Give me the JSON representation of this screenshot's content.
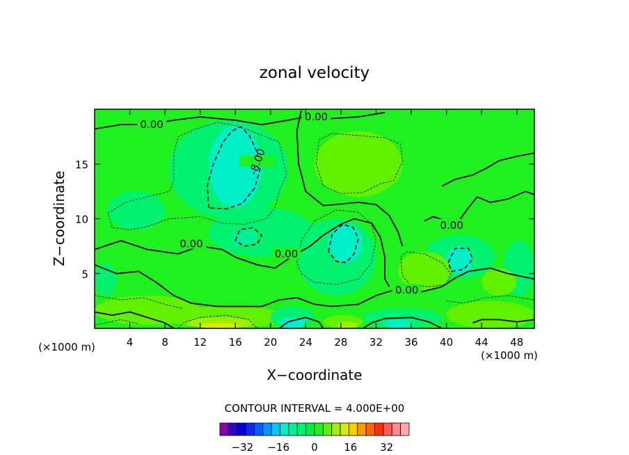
{
  "chart_data": {
    "type": "heatmap",
    "title": "zonal velocity",
    "xlabel": "X−coordinate",
    "ylabel": "Z−coordinate",
    "x_unit": "(×1000 m)",
    "y_unit": "(×1000 m)",
    "xlim": [
      0,
      50
    ],
    "ylim": [
      0,
      20
    ],
    "x_ticks": [
      "4",
      "8",
      "12",
      "16",
      "20",
      "24",
      "28",
      "32",
      "36",
      "40",
      "44",
      "48"
    ],
    "y_ticks": [
      "5",
      "10",
      "15"
    ],
    "contour_interval_label": "CONTOUR INTERVAL = 4.000E+00",
    "contour_interval": 4,
    "contour_labels": [
      {
        "text": "0.00",
        "x": 6.5,
        "z": 18.6
      },
      {
        "text": "0.00",
        "x": 25.2,
        "z": 19.3
      },
      {
        "text": "-8.00",
        "x": 18.5,
        "z": 15.2
      },
      {
        "text": "0.00",
        "x": 11.0,
        "z": 7.7
      },
      {
        "text": "0.00",
        "x": 21.8,
        "z": 6.8
      },
      {
        "text": "0.00",
        "x": 40.6,
        "z": 9.4
      },
      {
        "text": "0.00",
        "x": 35.5,
        "z": 3.5
      }
    ],
    "colorbar": {
      "tick_labels": [
        "−32",
        "−16",
        "0",
        "16",
        "32"
      ],
      "tick_values": [
        -32,
        -16,
        0,
        16,
        32
      ],
      "min": -42,
      "max": 42,
      "colors": [
        "#8b00a8",
        "#3a00c8",
        "#0000d8",
        "#0a2cf0",
        "#0060ff",
        "#0098ff",
        "#00c8ff",
        "#00eec8",
        "#00f09a",
        "#00f070",
        "#00ec46",
        "#20f020",
        "#60f000",
        "#a0ee00",
        "#d8ea00",
        "#f8d000",
        "#ff9a00",
        "#ff6400",
        "#ff3200",
        "#ff5a5a",
        "#ff8888",
        "#ffa8a8"
      ]
    },
    "regions": [
      {
        "level": 0,
        "x": 0,
        "z": 0,
        "w": 50,
        "h": 20,
        "color": "#20f020"
      },
      {
        "level": -4,
        "x": 1.5,
        "z": 9.0,
        "w": 6.5,
        "h": 3.5,
        "color": "#00f070"
      },
      {
        "level": -4,
        "x": 8.5,
        "z": 10.0,
        "w": 13.5,
        "h": 9.0,
        "color": "#00f070"
      },
      {
        "level": -4,
        "x": 13.0,
        "z": 6.5,
        "w": 12.0,
        "h": 4.5,
        "color": "#00f070"
      },
      {
        "level": -8,
        "x": 13.0,
        "z": 11.0,
        "w": 6.0,
        "h": 7.5,
        "color": "#00eec8"
      },
      {
        "level": -4,
        "x": 23.0,
        "z": 3.0,
        "w": 9.0,
        "h": 7.0,
        "color": "#00f070"
      },
      {
        "level": -8,
        "x": 26.5,
        "z": 6.0,
        "w": 4.0,
        "h": 3.5,
        "color": "#00eec8"
      },
      {
        "level": -4,
        "x": 15.5,
        "z": 7.5,
        "w": 3.0,
        "h": 1.5,
        "color": "#00f09a"
      },
      {
        "level": 4,
        "x": 25.0,
        "z": 12.0,
        "w": 10.0,
        "h": 6.0,
        "color": "#60f000"
      },
      {
        "level": -4,
        "x": 37.5,
        "z": 4.5,
        "w": 8.0,
        "h": 4.0,
        "color": "#00f070"
      },
      {
        "level": -8,
        "x": 40.0,
        "z": 5.0,
        "w": 3.0,
        "h": 2.5,
        "color": "#00eec8"
      },
      {
        "level": 4,
        "x": 34.5,
        "z": 3.5,
        "w": 6.0,
        "h": 3.5,
        "color": "#60f000"
      },
      {
        "level": 4,
        "x": 0.0,
        "z": 0.3,
        "w": 12.0,
        "h": 2.7,
        "color": "#60f000"
      },
      {
        "level": 4,
        "x": 8.0,
        "z": 0.0,
        "w": 14.0,
        "h": 2.0,
        "color": "#60f000"
      },
      {
        "level": 8,
        "x": 10.5,
        "z": 0.0,
        "w": 7.5,
        "h": 1.0,
        "color": "#a0ee00"
      },
      {
        "level": 12,
        "x": 12.0,
        "z": 0.0,
        "w": 4.5,
        "h": 0.5,
        "color": "#d8ea00"
      },
      {
        "level": -4,
        "x": 20.0,
        "z": 0.0,
        "w": 5.0,
        "h": 2.0,
        "color": "#00f070"
      },
      {
        "level": -8,
        "x": 21.0,
        "z": 0.0,
        "w": 3.0,
        "h": 1.0,
        "color": "#00eec8"
      },
      {
        "level": 4,
        "x": 26.0,
        "z": 0.0,
        "w": 4.5,
        "h": 1.2,
        "color": "#60f000"
      },
      {
        "level": 8,
        "x": 27.5,
        "z": 0.0,
        "w": 2.5,
        "h": 0.6,
        "color": "#a0ee00"
      },
      {
        "level": -4,
        "x": 30.5,
        "z": 0.0,
        "w": 9.0,
        "h": 1.8,
        "color": "#00f070"
      },
      {
        "level": -8,
        "x": 33.0,
        "z": 0.0,
        "w": 3.0,
        "h": 0.8,
        "color": "#00eec8"
      },
      {
        "level": 4,
        "x": 40.0,
        "z": 0.0,
        "w": 10.0,
        "h": 2.5,
        "color": "#60f000"
      },
      {
        "level": -4,
        "x": 0.0,
        "z": 3.0,
        "w": 2.5,
        "h": 3.0,
        "color": "#00f070"
      },
      {
        "level": -4,
        "x": 46.5,
        "z": 3.0,
        "w": 3.5,
        "h": 5.0,
        "color": "#00f070"
      },
      {
        "level": 4,
        "x": 44.0,
        "z": 3.0,
        "w": 4.0,
        "h": 2.5,
        "color": "#60f000"
      }
    ],
    "zero_contours": [
      [
        [
          0,
          18.2
        ],
        [
          3,
          18.6
        ],
        [
          6,
          18.6
        ],
        [
          9,
          19.0
        ],
        [
          12,
          19.3
        ],
        [
          16,
          19.0
        ],
        [
          19,
          18.6
        ],
        [
          22,
          19.0
        ],
        [
          24,
          19.3
        ],
        [
          26,
          19.1
        ],
        [
          30,
          19.3
        ],
        [
          33,
          19.7
        ]
      ],
      [
        [
          23.5,
          19.9
        ],
        [
          23.0,
          18.0
        ],
        [
          23.2,
          15.0
        ],
        [
          24.0,
          12.5
        ],
        [
          26.0,
          11.2
        ],
        [
          30.0,
          11.5
        ],
        [
          32.0,
          11.3
        ],
        [
          33.5,
          10.3
        ],
        [
          34.5,
          8.8
        ],
        [
          35.0,
          7.5
        ]
      ],
      [
        [
          0,
          7.2
        ],
        [
          3.0,
          8.0
        ],
        [
          6.0,
          7.2
        ],
        [
          9.5,
          6.8
        ],
        [
          12.0,
          7.5
        ],
        [
          14.5,
          7.2
        ],
        [
          16.0,
          6.5
        ],
        [
          18.5,
          5.8
        ],
        [
          20.5,
          5.5
        ],
        [
          22.5,
          6.6
        ],
        [
          24.5,
          7.5
        ],
        [
          26.0,
          8.5
        ]
      ],
      [
        [
          0,
          5.8
        ],
        [
          2.5,
          5.0
        ],
        [
          5.0,
          5.2
        ],
        [
          7.0,
          4.2
        ],
        [
          9.0,
          3.0
        ],
        [
          11.0,
          2.3
        ],
        [
          14.0,
          2.0
        ],
        [
          17.0,
          2.0
        ],
        [
          19.0,
          2.0
        ],
        [
          21.0,
          2.6
        ],
        [
          23.0,
          2.8
        ],
        [
          25.0,
          2.2
        ],
        [
          27.0,
          2.0
        ],
        [
          30.0,
          2.2
        ],
        [
          32.0,
          3.0
        ],
        [
          34.0,
          3.5
        ],
        [
          37.0,
          3.3
        ],
        [
          39.5,
          3.8
        ],
        [
          41.0,
          4.6
        ],
        [
          42.5,
          5.2
        ],
        [
          45.0,
          5.5
        ],
        [
          47.0,
          5.0
        ],
        [
          50,
          4.5
        ]
      ],
      [
        [
          26.0,
          8.5
        ],
        [
          28.0,
          9.5
        ],
        [
          29.5,
          10.0
        ],
        [
          31.5,
          9.6
        ],
        [
          32.5,
          8.3
        ],
        [
          33.0,
          6.5
        ],
        [
          33.0,
          4.5
        ],
        [
          33.5,
          3.8
        ]
      ],
      [
        [
          37.5,
          9.8
        ],
        [
          38.5,
          10.2
        ],
        [
          40.0,
          9.8
        ],
        [
          41.5,
          9.9
        ],
        [
          42.5,
          11.0
        ],
        [
          43.5,
          12.0
        ],
        [
          45.0,
          11.5
        ],
        [
          47.0,
          11.8
        ],
        [
          49.0,
          12.5
        ],
        [
          50,
          12.2
        ]
      ],
      [
        [
          39.5,
          13.0
        ],
        [
          41.0,
          13.6
        ],
        [
          43.0,
          14.0
        ],
        [
          44.5,
          14.6
        ],
        [
          46.0,
          15.3
        ],
        [
          48.0,
          15.7
        ],
        [
          50,
          16.0
        ]
      ],
      [
        [
          0,
          1.5
        ],
        [
          2.0,
          1.2
        ],
        [
          4.0,
          1.5
        ],
        [
          6.0,
          1.0
        ],
        [
          8.0,
          0.5
        ],
        [
          9.0,
          0
        ]
      ],
      [
        [
          21.0,
          0
        ],
        [
          22.0,
          0.6
        ],
        [
          24.0,
          1.0
        ],
        [
          25.5,
          0.6
        ],
        [
          26.0,
          0
        ]
      ],
      [
        [
          30.5,
          0
        ],
        [
          31.5,
          0.5
        ],
        [
          33.0,
          0.9
        ],
        [
          36.0,
          1.0
        ],
        [
          38.0,
          0.6
        ],
        [
          39.5,
          0
        ]
      ],
      [
        [
          43.0,
          0.5
        ],
        [
          44.0,
          0.8
        ],
        [
          46.0,
          0.8
        ],
        [
          48.0,
          0.6
        ],
        [
          50,
          0.8
        ]
      ]
    ],
    "neg8_contours": [
      [
        [
          13.0,
          11.0
        ],
        [
          12.8,
          13.0
        ],
        [
          13.5,
          15.0
        ],
        [
          14.6,
          17.0
        ],
        [
          15.6,
          18.0
        ],
        [
          16.6,
          18.4
        ],
        [
          17.6,
          17.6
        ],
        [
          18.4,
          16.2
        ],
        [
          18.8,
          14.5
        ],
        [
          18.2,
          12.8
        ],
        [
          16.8,
          11.4
        ],
        [
          15.0,
          10.9
        ],
        [
          13.0,
          11.0
        ]
      ],
      [
        [
          26.6,
          7.0
        ],
        [
          27.0,
          8.6
        ],
        [
          28.2,
          9.5
        ],
        [
          29.4,
          9.2
        ],
        [
          30.0,
          8.2
        ],
        [
          29.5,
          6.8
        ],
        [
          28.6,
          6.0
        ],
        [
          27.5,
          6.1
        ],
        [
          26.6,
          7.0
        ]
      ],
      [
        [
          16.0,
          8.0
        ],
        [
          16.5,
          9.0
        ],
        [
          18.0,
          9.2
        ],
        [
          19.0,
          8.5
        ],
        [
          18.5,
          7.7
        ],
        [
          17.0,
          7.5
        ],
        [
          16.0,
          8.0
        ]
      ],
      [
        [
          40.2,
          6.0
        ],
        [
          41.0,
          7.3
        ],
        [
          42.5,
          7.3
        ],
        [
          43.0,
          6.3
        ],
        [
          42.0,
          5.4
        ],
        [
          40.6,
          5.2
        ],
        [
          40.2,
          6.0
        ]
      ]
    ],
    "thin_contours": [
      [
        [
          1.5,
          10.5
        ],
        [
          3.5,
          11.5
        ],
        [
          6.0,
          12.0
        ],
        [
          8.5,
          12.5
        ],
        [
          9.0,
          13.5
        ],
        [
          9.0,
          16.0
        ],
        [
          9.5,
          17.5
        ],
        [
          11.5,
          18.2
        ],
        [
          14.0,
          18.8
        ],
        [
          16.0,
          18.5
        ],
        [
          18.5,
          17.8
        ],
        [
          21.0,
          17.0
        ],
        [
          21.8,
          14.0
        ],
        [
          21.0,
          12.5
        ],
        [
          20.5,
          11.0
        ],
        [
          19.5,
          10.0
        ],
        [
          17.0,
          9.5
        ],
        [
          14.5,
          9.6
        ],
        [
          12.0,
          10.2
        ],
        [
          8.5,
          10.0
        ],
        [
          6.0,
          9.3
        ],
        [
          4.0,
          9.0
        ],
        [
          2.0,
          9.2
        ],
        [
          1.5,
          10.5
        ]
      ],
      [
        [
          23.0,
          6.0
        ],
        [
          23.5,
          8.0
        ],
        [
          25.0,
          9.8
        ],
        [
          27.5,
          10.8
        ],
        [
          30.0,
          10.6
        ],
        [
          31.5,
          9.5
        ],
        [
          32.0,
          8.0
        ],
        [
          31.5,
          6.0
        ],
        [
          30.0,
          4.5
        ],
        [
          27.5,
          4.0
        ],
        [
          25.0,
          4.2
        ],
        [
          23.5,
          5.0
        ],
        [
          23.0,
          6.0
        ]
      ],
      [
        [
          25.2,
          15.0
        ],
        [
          25.5,
          17.2
        ],
        [
          27.0,
          17.8
        ],
        [
          30.0,
          17.6
        ],
        [
          33.0,
          17.4
        ],
        [
          34.8,
          16.8
        ],
        [
          35.0,
          15.2
        ],
        [
          34.0,
          13.5
        ],
        [
          32.5,
          13.2
        ],
        [
          30.5,
          12.4
        ],
        [
          28.0,
          12.3
        ],
        [
          26.0,
          13.0
        ],
        [
          25.2,
          15.0
        ]
      ],
      [
        [
          34.8,
          6.5
        ],
        [
          35.5,
          7.0
        ],
        [
          37.5,
          6.8
        ],
        [
          39.5,
          6.0
        ],
        [
          40.5,
          5.0
        ],
        [
          40.0,
          4.0
        ],
        [
          38.0,
          3.8
        ],
        [
          36.0,
          3.9
        ],
        [
          35.0,
          4.8
        ],
        [
          34.8,
          6.5
        ]
      ],
      [
        [
          9.5,
          0
        ],
        [
          10.0,
          0.5
        ],
        [
          12.0,
          1.0
        ],
        [
          15.0,
          1.2
        ],
        [
          17.5,
          0.8
        ],
        [
          18.5,
          0
        ]
      ],
      [
        [
          0,
          3.0
        ],
        [
          3.0,
          2.6
        ],
        [
          5.5,
          2.8
        ],
        [
          8.0,
          2.2
        ],
        [
          10.0,
          1.8
        ]
      ],
      [
        [
          0,
          0.3
        ],
        [
          3.0,
          0.8
        ],
        [
          5.0,
          0.4
        ]
      ],
      [
        [
          40.0,
          2.5
        ],
        [
          42.0,
          2.3
        ],
        [
          44.5,
          2.8
        ],
        [
          47.0,
          3.0
        ],
        [
          50,
          2.6
        ]
      ]
    ]
  }
}
